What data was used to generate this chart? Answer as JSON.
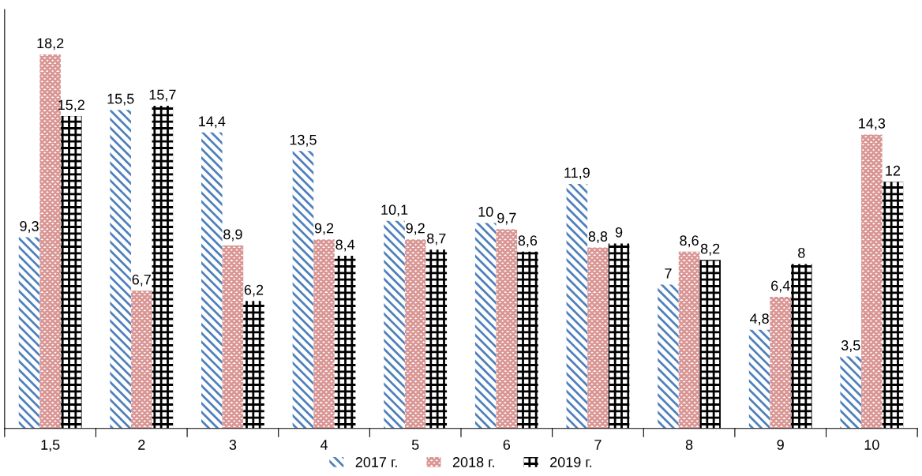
{
  "chart_data": {
    "type": "bar",
    "categories": [
      "1,5",
      "2",
      "3",
      "4",
      "5",
      "6",
      "7",
      "8",
      "9",
      "10"
    ],
    "series": [
      {
        "name": "2017 г.",
        "color": "#4f81bd",
        "values": [
          9.3,
          15.5,
          14.4,
          13.5,
          10.1,
          10,
          11.9,
          7,
          4.8,
          3.5
        ],
        "value_labels": [
          "9,3",
          "15,5",
          "14,4",
          "13,5",
          "10,1",
          "10",
          "11,9",
          "7",
          "4,8",
          "3,5"
        ]
      },
      {
        "name": "2018 г.",
        "color": "#d99694",
        "values": [
          18.2,
          6.7,
          8.9,
          9.2,
          9.2,
          9.7,
          8.8,
          8.6,
          6.4,
          14.3
        ],
        "value_labels": [
          "18,2",
          "6,7",
          "8,9",
          "9,2",
          "9,2",
          "9,7",
          "8,8",
          "8,6",
          "6,4",
          "14,3"
        ]
      },
      {
        "name": "2019 г.",
        "color": "#000000",
        "values": [
          15.2,
          15.7,
          6.2,
          8.4,
          8.7,
          8.6,
          9,
          8.2,
          8,
          12
        ],
        "value_labels": [
          "15,2",
          "15,7",
          "6,2",
          "8,4",
          "8,7",
          "8,6",
          "9",
          "8,2",
          "8",
          "12"
        ]
      }
    ],
    "legend": "bottom",
    "grid": false
  }
}
